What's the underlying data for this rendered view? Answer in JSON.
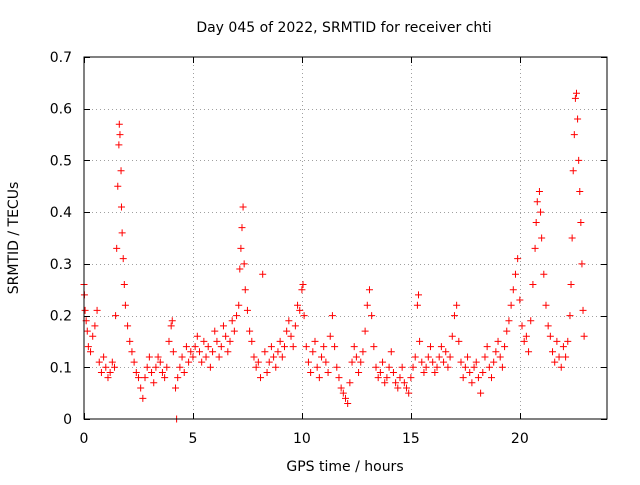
{
  "chart_data": {
    "type": "scatter",
    "title": "Day 045 of 2022, SRMTID for receiver chti",
    "xlabel": "GPS time / hours",
    "ylabel": "SRMTID / TECUs",
    "xlim": [
      0,
      24
    ],
    "ylim": [
      0,
      0.7
    ],
    "x_ticks": [
      0,
      5,
      10,
      15,
      20
    ],
    "x_tick_labels": [
      "0",
      "5",
      "10",
      "15",
      "20"
    ],
    "y_ticks": [
      0,
      0.1,
      0.2,
      0.3,
      0.4,
      0.5,
      0.6,
      0.7
    ],
    "y_tick_labels": [
      "0",
      "0.1",
      "0.2",
      "0.3",
      "0.4",
      "0.5",
      "0.6",
      "0.7"
    ],
    "grid": true,
    "marker": "plus",
    "colors": {
      "series": "#ff0000",
      "grid": "#a0a0a0",
      "axes": "#000000"
    },
    "series": [
      {
        "name": "SRMTID",
        "points": [
          [
            0.0,
            0.26
          ],
          [
            0.02,
            0.24
          ],
          [
            0.05,
            0.21
          ],
          [
            0.1,
            0.19
          ],
          [
            0.15,
            0.17
          ],
          [
            0.2,
            0.14
          ],
          [
            0.3,
            0.13
          ],
          [
            0.4,
            0.16
          ],
          [
            0.5,
            0.18
          ],
          [
            0.6,
            0.21
          ],
          [
            0.7,
            0.11
          ],
          [
            0.8,
            0.09
          ],
          [
            0.9,
            0.12
          ],
          [
            1.0,
            0.1
          ],
          [
            1.1,
            0.08
          ],
          [
            1.2,
            0.09
          ],
          [
            1.3,
            0.11
          ],
          [
            1.4,
            0.1
          ],
          [
            1.45,
            0.2
          ],
          [
            1.5,
            0.33
          ],
          [
            1.55,
            0.45
          ],
          [
            1.6,
            0.53
          ],
          [
            1.62,
            0.57
          ],
          [
            1.65,
            0.55
          ],
          [
            1.7,
            0.48
          ],
          [
            1.72,
            0.41
          ],
          [
            1.75,
            0.36
          ],
          [
            1.8,
            0.31
          ],
          [
            1.85,
            0.26
          ],
          [
            1.9,
            0.22
          ],
          [
            2.0,
            0.18
          ],
          [
            2.1,
            0.15
          ],
          [
            2.2,
            0.13
          ],
          [
            2.3,
            0.11
          ],
          [
            2.4,
            0.09
          ],
          [
            2.5,
            0.08
          ],
          [
            2.6,
            0.06
          ],
          [
            2.7,
            0.04
          ],
          [
            2.8,
            0.08
          ],
          [
            2.9,
            0.1
          ],
          [
            3.0,
            0.12
          ],
          [
            3.1,
            0.09
          ],
          [
            3.2,
            0.07
          ],
          [
            3.3,
            0.1
          ],
          [
            3.4,
            0.12
          ],
          [
            3.5,
            0.11
          ],
          [
            3.6,
            0.09
          ],
          [
            3.7,
            0.08
          ],
          [
            3.8,
            0.1
          ],
          [
            3.9,
            0.15
          ],
          [
            4.0,
            0.18
          ],
          [
            4.05,
            0.19
          ],
          [
            4.1,
            0.13
          ],
          [
            4.2,
            0.06
          ],
          [
            4.25,
            0.0
          ],
          [
            4.3,
            0.08
          ],
          [
            4.4,
            0.1
          ],
          [
            4.5,
            0.12
          ],
          [
            4.6,
            0.09
          ],
          [
            4.7,
            0.14
          ],
          [
            4.8,
            0.11
          ],
          [
            4.9,
            0.13
          ],
          [
            5.0,
            0.12
          ],
          [
            5.1,
            0.14
          ],
          [
            5.2,
            0.16
          ],
          [
            5.3,
            0.13
          ],
          [
            5.4,
            0.11
          ],
          [
            5.5,
            0.15
          ],
          [
            5.6,
            0.12
          ],
          [
            5.7,
            0.14
          ],
          [
            5.8,
            0.1
          ],
          [
            5.9,
            0.13
          ],
          [
            6.0,
            0.17
          ],
          [
            6.1,
            0.15
          ],
          [
            6.2,
            0.12
          ],
          [
            6.3,
            0.14
          ],
          [
            6.4,
            0.18
          ],
          [
            6.5,
            0.16
          ],
          [
            6.6,
            0.13
          ],
          [
            6.7,
            0.15
          ],
          [
            6.8,
            0.19
          ],
          [
            6.9,
            0.17
          ],
          [
            7.0,
            0.2
          ],
          [
            7.1,
            0.22
          ],
          [
            7.15,
            0.29
          ],
          [
            7.2,
            0.33
          ],
          [
            7.25,
            0.37
          ],
          [
            7.3,
            0.41
          ],
          [
            7.35,
            0.3
          ],
          [
            7.4,
            0.25
          ],
          [
            7.5,
            0.21
          ],
          [
            7.6,
            0.17
          ],
          [
            7.7,
            0.15
          ],
          [
            7.8,
            0.12
          ],
          [
            7.9,
            0.1
          ],
          [
            8.0,
            0.11
          ],
          [
            8.1,
            0.08
          ],
          [
            8.2,
            0.28
          ],
          [
            8.3,
            0.13
          ],
          [
            8.4,
            0.09
          ],
          [
            8.5,
            0.11
          ],
          [
            8.6,
            0.14
          ],
          [
            8.7,
            0.12
          ],
          [
            8.8,
            0.1
          ],
          [
            8.9,
            0.13
          ],
          [
            9.0,
            0.15
          ],
          [
            9.1,
            0.12
          ],
          [
            9.2,
            0.14
          ],
          [
            9.3,
            0.17
          ],
          [
            9.4,
            0.19
          ],
          [
            9.5,
            0.16
          ],
          [
            9.6,
            0.14
          ],
          [
            9.7,
            0.18
          ],
          [
            9.8,
            0.22
          ],
          [
            9.9,
            0.21
          ],
          [
            10.0,
            0.25
          ],
          [
            10.05,
            0.26
          ],
          [
            10.1,
            0.2
          ],
          [
            10.2,
            0.14
          ],
          [
            10.3,
            0.11
          ],
          [
            10.4,
            0.09
          ],
          [
            10.5,
            0.13
          ],
          [
            10.6,
            0.15
          ],
          [
            10.7,
            0.1
          ],
          [
            10.8,
            0.08
          ],
          [
            10.9,
            0.12
          ],
          [
            11.0,
            0.14
          ],
          [
            11.1,
            0.11
          ],
          [
            11.2,
            0.09
          ],
          [
            11.3,
            0.16
          ],
          [
            11.4,
            0.2
          ],
          [
            11.5,
            0.14
          ],
          [
            11.6,
            0.1
          ],
          [
            11.7,
            0.08
          ],
          [
            11.8,
            0.06
          ],
          [
            11.9,
            0.05
          ],
          [
            12.0,
            0.04
          ],
          [
            12.1,
            0.03
          ],
          [
            12.2,
            0.07
          ],
          [
            12.3,
            0.11
          ],
          [
            12.4,
            0.14
          ],
          [
            12.5,
            0.12
          ],
          [
            12.6,
            0.09
          ],
          [
            12.7,
            0.11
          ],
          [
            12.8,
            0.13
          ],
          [
            12.9,
            0.17
          ],
          [
            13.0,
            0.22
          ],
          [
            13.1,
            0.25
          ],
          [
            13.2,
            0.2
          ],
          [
            13.3,
            0.14
          ],
          [
            13.4,
            0.1
          ],
          [
            13.5,
            0.08
          ],
          [
            13.6,
            0.09
          ],
          [
            13.7,
            0.11
          ],
          [
            13.8,
            0.07
          ],
          [
            13.9,
            0.08
          ],
          [
            14.0,
            0.1
          ],
          [
            14.1,
            0.13
          ],
          [
            14.2,
            0.09
          ],
          [
            14.3,
            0.07
          ],
          [
            14.4,
            0.06
          ],
          [
            14.5,
            0.08
          ],
          [
            14.6,
            0.1
          ],
          [
            14.7,
            0.07
          ],
          [
            14.8,
            0.06
          ],
          [
            14.9,
            0.05
          ],
          [
            15.0,
            0.08
          ],
          [
            15.1,
            0.1
          ],
          [
            15.2,
            0.12
          ],
          [
            15.3,
            0.22
          ],
          [
            15.35,
            0.24
          ],
          [
            15.4,
            0.15
          ],
          [
            15.5,
            0.11
          ],
          [
            15.6,
            0.09
          ],
          [
            15.7,
            0.1
          ],
          [
            15.8,
            0.12
          ],
          [
            15.9,
            0.14
          ],
          [
            16.0,
            0.11
          ],
          [
            16.1,
            0.09
          ],
          [
            16.2,
            0.1
          ],
          [
            16.3,
            0.12
          ],
          [
            16.4,
            0.14
          ],
          [
            16.5,
            0.11
          ],
          [
            16.6,
            0.13
          ],
          [
            16.7,
            0.1
          ],
          [
            16.8,
            0.12
          ],
          [
            16.9,
            0.16
          ],
          [
            17.0,
            0.2
          ],
          [
            17.1,
            0.22
          ],
          [
            17.2,
            0.15
          ],
          [
            17.3,
            0.11
          ],
          [
            17.4,
            0.08
          ],
          [
            17.5,
            0.1
          ],
          [
            17.6,
            0.12
          ],
          [
            17.7,
            0.09
          ],
          [
            17.8,
            0.07
          ],
          [
            17.9,
            0.1
          ],
          [
            18.0,
            0.11
          ],
          [
            18.1,
            0.08
          ],
          [
            18.2,
            0.05
          ],
          [
            18.3,
            0.09
          ],
          [
            18.4,
            0.12
          ],
          [
            18.5,
            0.14
          ],
          [
            18.6,
            0.1
          ],
          [
            18.7,
            0.08
          ],
          [
            18.8,
            0.11
          ],
          [
            18.9,
            0.13
          ],
          [
            19.0,
            0.15
          ],
          [
            19.1,
            0.12
          ],
          [
            19.2,
            0.1
          ],
          [
            19.3,
            0.14
          ],
          [
            19.4,
            0.17
          ],
          [
            19.5,
            0.19
          ],
          [
            19.6,
            0.22
          ],
          [
            19.7,
            0.25
          ],
          [
            19.8,
            0.28
          ],
          [
            19.9,
            0.31
          ],
          [
            20.0,
            0.23
          ],
          [
            20.1,
            0.18
          ],
          [
            20.2,
            0.15
          ],
          [
            20.3,
            0.16
          ],
          [
            20.4,
            0.13
          ],
          [
            20.5,
            0.19
          ],
          [
            20.6,
            0.26
          ],
          [
            20.7,
            0.33
          ],
          [
            20.75,
            0.38
          ],
          [
            20.8,
            0.42
          ],
          [
            20.9,
            0.44
          ],
          [
            20.95,
            0.4
          ],
          [
            21.0,
            0.35
          ],
          [
            21.1,
            0.28
          ],
          [
            21.2,
            0.22
          ],
          [
            21.3,
            0.18
          ],
          [
            21.4,
            0.16
          ],
          [
            21.5,
            0.13
          ],
          [
            21.6,
            0.11
          ],
          [
            21.7,
            0.15
          ],
          [
            21.8,
            0.12
          ],
          [
            21.9,
            0.1
          ],
          [
            22.0,
            0.14
          ],
          [
            22.1,
            0.12
          ],
          [
            22.2,
            0.15
          ],
          [
            22.3,
            0.2
          ],
          [
            22.35,
            0.26
          ],
          [
            22.4,
            0.35
          ],
          [
            22.45,
            0.48
          ],
          [
            22.5,
            0.55
          ],
          [
            22.55,
            0.62
          ],
          [
            22.6,
            0.63
          ],
          [
            22.65,
            0.58
          ],
          [
            22.7,
            0.5
          ],
          [
            22.75,
            0.44
          ],
          [
            22.8,
            0.38
          ],
          [
            22.85,
            0.3
          ],
          [
            22.9,
            0.21
          ],
          [
            22.95,
            0.16
          ]
        ]
      }
    ]
  }
}
